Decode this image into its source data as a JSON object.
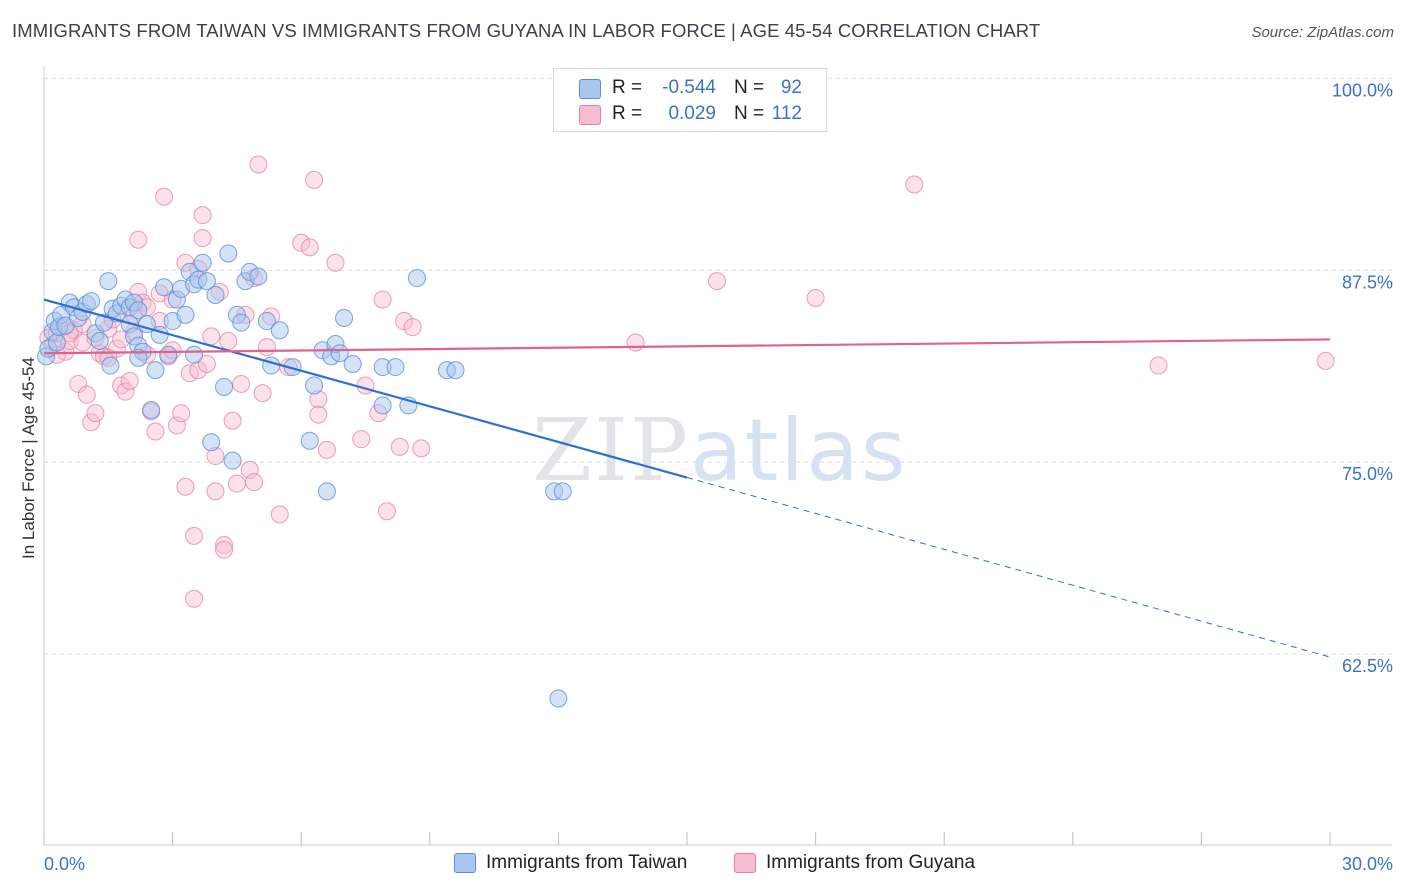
{
  "title": "IMMIGRANTS FROM TAIWAN VS IMMIGRANTS FROM GUYANA IN LABOR FORCE | AGE 45-54 CORRELATION CHART",
  "source": "Source: ZipAtlas.com",
  "watermark": "ZIPatlas",
  "colors": {
    "taiwan_fill": "#a9c6ee",
    "taiwan_stroke": "#5b8fd6",
    "taiwan_line": "#2f6fd0",
    "guyana_fill": "#f6bcd0",
    "guyana_stroke": "#e77fa3",
    "guyana_line": "#e0628e",
    "tick_text": "#3a72c8"
  },
  "legend": {
    "rows": [
      {
        "swatch": "taiwan",
        "r_label": "R =",
        "r_value": "-0.544",
        "n_label": "N =",
        "n_value": "92"
      },
      {
        "swatch": "guyana",
        "r_label": "R =",
        "r_value": "0.029",
        "n_label": "N =",
        "n_value": "112"
      }
    ]
  },
  "bottom_legend": [
    {
      "label": "Immigrants from Taiwan"
    },
    {
      "label": "Immigrants from Guyana"
    }
  ],
  "chart_data": {
    "type": "scatter",
    "title": "IMMIGRANTS FROM TAIWAN VS IMMIGRANTS FROM GUYANA IN LABOR FORCE | AGE 45-54 CORRELATION CHART",
    "xlabel": "",
    "ylabel": "In Labor Force | Age 45-54",
    "xlim": [
      0,
      30
    ],
    "ylim": [
      51.5,
      102.5
    ],
    "x_tick_labels": [
      "0.0%",
      "30.0%"
    ],
    "y_ticks": [
      62.5,
      75.0,
      87.5,
      100.0
    ],
    "y_tick_labels": [
      "62.5%",
      "75.0%",
      "87.5%",
      "100.0%"
    ],
    "grid": true,
    "legend_position": "top-center",
    "series": [
      {
        "name": "Immigrants from Taiwan",
        "color": "#5b8fd6",
        "trend": {
          "x0": 0,
          "y0": 85.6,
          "x1": 15,
          "y1": 74.0,
          "x_dash_end": 30,
          "y_dash_end": 62.3
        },
        "points": [
          [
            0.05,
            81.9
          ],
          [
            0.1,
            82.4
          ],
          [
            0.2,
            83.5
          ],
          [
            0.25,
            84.2
          ],
          [
            0.3,
            82.8
          ],
          [
            0.35,
            83.8
          ],
          [
            0.4,
            84.6
          ],
          [
            0.5,
            83.9
          ],
          [
            0.6,
            85.4
          ],
          [
            0.7,
            85.1
          ],
          [
            0.8,
            84.4
          ],
          [
            0.9,
            84.8
          ],
          [
            1.0,
            85.3
          ],
          [
            1.1,
            85.5
          ],
          [
            1.2,
            83.4
          ],
          [
            1.3,
            82.9
          ],
          [
            1.4,
            84.1
          ],
          [
            1.5,
            86.8
          ],
          [
            1.6,
            85.0
          ],
          [
            1.7,
            84.7
          ],
          [
            1.55,
            81.3
          ],
          [
            1.8,
            85.2
          ],
          [
            1.9,
            85.6
          ],
          [
            2.0,
            85.1
          ],
          [
            2.1,
            85.4
          ],
          [
            2.2,
            84.9
          ],
          [
            2.0,
            84.0
          ],
          [
            2.1,
            83.2
          ],
          [
            2.2,
            82.6
          ],
          [
            2.3,
            82.2
          ],
          [
            2.2,
            81.8
          ],
          [
            2.4,
            84.0
          ],
          [
            2.5,
            78.4
          ],
          [
            2.6,
            81.0
          ],
          [
            2.7,
            83.3
          ],
          [
            2.8,
            86.4
          ],
          [
            2.9,
            82.0
          ],
          [
            3.0,
            84.2
          ],
          [
            3.1,
            85.6
          ],
          [
            3.2,
            86.3
          ],
          [
            3.3,
            84.6
          ],
          [
            3.4,
            87.4
          ],
          [
            3.5,
            86.6
          ],
          [
            3.5,
            82.0
          ],
          [
            3.6,
            86.9
          ],
          [
            3.7,
            88.0
          ],
          [
            3.8,
            86.8
          ],
          [
            3.9,
            76.3
          ],
          [
            4.0,
            85.9
          ],
          [
            4.2,
            79.9
          ],
          [
            4.3,
            88.6
          ],
          [
            4.4,
            75.1
          ],
          [
            4.5,
            84.6
          ],
          [
            4.6,
            84.1
          ],
          [
            4.7,
            86.8
          ],
          [
            4.8,
            87.4
          ],
          [
            5.0,
            87.1
          ],
          [
            5.2,
            84.2
          ],
          [
            5.3,
            81.3
          ],
          [
            5.5,
            83.6
          ],
          [
            5.8,
            81.2
          ],
          [
            6.2,
            76.4
          ],
          [
            6.3,
            80.0
          ],
          [
            6.5,
            82.3
          ],
          [
            6.6,
            73.1
          ],
          [
            6.7,
            81.9
          ],
          [
            6.8,
            82.7
          ],
          [
            6.9,
            82.1
          ],
          [
            7.0,
            84.4
          ],
          [
            7.2,
            81.4
          ],
          [
            7.9,
            81.2
          ],
          [
            7.9,
            78.7
          ],
          [
            8.2,
            81.2
          ],
          [
            8.5,
            78.7
          ],
          [
            8.7,
            87.0
          ],
          [
            9.4,
            81.0
          ],
          [
            9.6,
            81.0
          ],
          [
            11.9,
            73.1
          ],
          [
            12.1,
            73.1
          ],
          [
            12.0,
            59.6
          ]
        ]
      },
      {
        "name": "Immigrants from Guyana",
        "color": "#e77fa3",
        "trend": {
          "x0": 0,
          "y0": 82.1,
          "x1": 30,
          "y1": 83.0
        },
        "points": [
          [
            0.1,
            83.1
          ],
          [
            0.2,
            82.6
          ],
          [
            0.3,
            83.4
          ],
          [
            0.4,
            83.9
          ],
          [
            0.5,
            82.2
          ],
          [
            0.6,
            82.9
          ],
          [
            0.7,
            83.6
          ],
          [
            0.8,
            80.1
          ],
          [
            0.9,
            84.0
          ],
          [
            1.0,
            79.4
          ],
          [
            1.1,
            77.6
          ],
          [
            1.2,
            78.2
          ],
          [
            1.3,
            82.1
          ],
          [
            1.4,
            81.9
          ],
          [
            1.5,
            83.7
          ],
          [
            1.6,
            84.3
          ],
          [
            1.7,
            82.4
          ],
          [
            1.8,
            80.0
          ],
          [
            1.9,
            79.6
          ],
          [
            2.0,
            80.3
          ],
          [
            2.1,
            83.5
          ],
          [
            2.2,
            86.1
          ],
          [
            2.2,
            89.5
          ],
          [
            2.3,
            85.4
          ],
          [
            2.4,
            82.0
          ],
          [
            2.5,
            78.3
          ],
          [
            2.6,
            77.0
          ],
          [
            2.7,
            86.0
          ],
          [
            2.8,
            92.3
          ],
          [
            2.9,
            81.9
          ],
          [
            3.0,
            82.3
          ],
          [
            3.1,
            77.4
          ],
          [
            3.2,
            78.2
          ],
          [
            3.3,
            73.4
          ],
          [
            3.4,
            80.8
          ],
          [
            3.5,
            70.2
          ],
          [
            3.5,
            66.1
          ],
          [
            3.6,
            81.0
          ],
          [
            3.7,
            89.6
          ],
          [
            3.7,
            91.1
          ],
          [
            3.8,
            81.4
          ],
          [
            3.9,
            83.2
          ],
          [
            4.0,
            75.4
          ],
          [
            4.0,
            73.1
          ],
          [
            4.1,
            86.1
          ],
          [
            4.2,
            69.6
          ],
          [
            4.2,
            69.3
          ],
          [
            4.3,
            82.9
          ],
          [
            4.4,
            77.7
          ],
          [
            4.5,
            73.6
          ],
          [
            4.6,
            80.1
          ],
          [
            4.7,
            84.6
          ],
          [
            4.8,
            74.5
          ],
          [
            4.9,
            73.7
          ],
          [
            4.9,
            87.0
          ],
          [
            5.0,
            94.4
          ],
          [
            5.1,
            79.5
          ],
          [
            5.2,
            82.5
          ],
          [
            5.3,
            84.5
          ],
          [
            5.5,
            71.6
          ],
          [
            5.7,
            81.2
          ],
          [
            6.0,
            89.3
          ],
          [
            6.2,
            89.0
          ],
          [
            6.3,
            93.4
          ],
          [
            6.4,
            79.1
          ],
          [
            6.4,
            78.1
          ],
          [
            6.6,
            75.8
          ],
          [
            6.8,
            88.0
          ],
          [
            7.4,
            76.5
          ],
          [
            7.5,
            80.0
          ],
          [
            7.8,
            78.2
          ],
          [
            7.9,
            85.6
          ],
          [
            8.0,
            71.8
          ],
          [
            8.3,
            76.0
          ],
          [
            8.4,
            84.2
          ],
          [
            8.6,
            83.8
          ],
          [
            8.8,
            75.9
          ],
          [
            13.8,
            82.8
          ],
          [
            15.7,
            86.8
          ],
          [
            18.0,
            85.7
          ],
          [
            20.3,
            93.1
          ],
          [
            26.0,
            81.3
          ],
          [
            29.9,
            81.6
          ],
          [
            0.3,
            82.0
          ],
          [
            0.6,
            83.4
          ],
          [
            0.9,
            82.8
          ],
          [
            1.2,
            83.1
          ],
          [
            1.5,
            81.8
          ],
          [
            1.8,
            83.0
          ],
          [
            2.1,
            84.6
          ],
          [
            2.4,
            85.1
          ],
          [
            2.7,
            84.2
          ],
          [
            3.0,
            85.6
          ],
          [
            3.3,
            88.0
          ],
          [
            3.6,
            87.6
          ]
        ]
      }
    ]
  }
}
